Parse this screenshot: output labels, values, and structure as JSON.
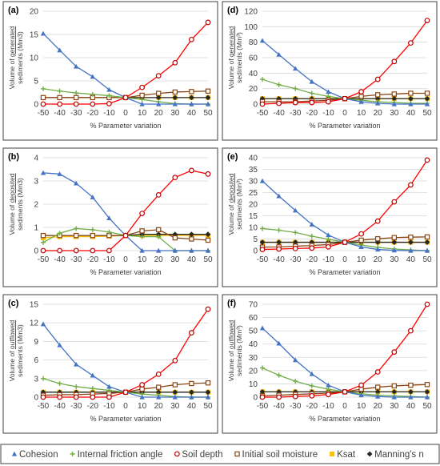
{
  "x_axis_label": "% Parameter variation",
  "colors": {
    "cohesion": "#4472C4",
    "friction": "#70AD47",
    "soil_depth": "#C00000",
    "initial_moisture": "#8B4513",
    "ksat": "#FFC000",
    "mannings": "#262626",
    "red_line": "#FF0000",
    "grid": "#D9D9D9",
    "frame": "#404040"
  },
  "legend": {
    "items": [
      {
        "key": "cohesion",
        "label": "Cohesion",
        "marker": "triangle"
      },
      {
        "key": "friction",
        "label": "Internal friction angle",
        "marker": "plus"
      },
      {
        "key": "soil_depth",
        "label": "Soil depth",
        "marker": "circle"
      },
      {
        "key": "initial_moisture",
        "label": "Initial soil moisture",
        "marker": "square-open"
      },
      {
        "key": "ksat",
        "label": "Ksat",
        "marker": "square"
      },
      {
        "key": "mannings",
        "label": "Manning's n",
        "marker": "diamond"
      }
    ]
  },
  "chart_data": [
    {
      "panel_label": "(a)",
      "type": "line",
      "ylabel_line1_prefix": "Volume of ",
      "ylabel_line1_word": "generated",
      "ylabel_line2": "sediments (Mm3)",
      "x": [
        -50,
        -40,
        -30,
        -20,
        -10,
        0,
        10,
        20,
        30,
        40,
        50
      ],
      "xlim": [
        -50,
        50
      ],
      "ylim": [
        0,
        20
      ],
      "yticks": [
        0,
        5,
        10,
        15,
        20
      ],
      "series": [
        {
          "name": "Cohesion",
          "key": "cohesion",
          "values": [
            15.2,
            11.6,
            8.1,
            5.9,
            3.1,
            1.4,
            0.0,
            0.0,
            0.0,
            0.0,
            0.0
          ]
        },
        {
          "name": "Internal friction angle",
          "key": "friction",
          "values": [
            3.3,
            2.8,
            2.4,
            2.1,
            1.8,
            1.4,
            1.0,
            0.5,
            0.1,
            0.0,
            0.0
          ]
        },
        {
          "name": "Soil depth",
          "key": "soil_depth",
          "values": [
            0.0,
            0.0,
            0.0,
            0.0,
            0.1,
            1.4,
            3.6,
            6.1,
            8.9,
            13.9,
            17.6
          ]
        },
        {
          "name": "Initial soil moisture",
          "key": "initial_moisture",
          "values": [
            1.4,
            1.4,
            1.4,
            1.4,
            1.4,
            1.4,
            1.9,
            2.3,
            2.6,
            2.7,
            2.8
          ]
        },
        {
          "name": "Ksat",
          "key": "ksat",
          "values": [
            1.4,
            1.4,
            1.4,
            1.4,
            1.4,
            1.4,
            1.4,
            1.4,
            1.4,
            1.4,
            1.4
          ]
        },
        {
          "name": "Manning's n",
          "key": "mannings",
          "values": [
            1.4,
            1.4,
            1.4,
            1.4,
            1.4,
            1.4,
            1.4,
            1.4,
            1.4,
            1.4,
            1.4
          ]
        }
      ]
    },
    {
      "panel_label": "(d)",
      "type": "line",
      "ylabel_line1_prefix": "Volume of ",
      "ylabel_line1_word": "generated",
      "ylabel_line2": "sediments (Mm³)",
      "x": [
        -50,
        -40,
        -30,
        -20,
        -10,
        0,
        10,
        20,
        30,
        40,
        50
      ],
      "xlim": [
        -50,
        50
      ],
      "ylim": [
        0,
        120
      ],
      "yticks": [
        0,
        20,
        40,
        60,
        80,
        100,
        120
      ],
      "series": [
        {
          "name": "Cohesion",
          "key": "cohesion",
          "values": [
            82,
            64,
            46,
            29,
            16,
            7,
            3,
            1,
            0,
            0,
            0
          ]
        },
        {
          "name": "Internal friction angle",
          "key": "friction",
          "values": [
            32,
            25,
            20,
            14,
            10,
            7,
            5,
            3,
            2,
            1,
            1
          ]
        },
        {
          "name": "Soil depth",
          "key": "soil_depth",
          "values": [
            0,
            1,
            2,
            2,
            3,
            7,
            16,
            32,
            55,
            79,
            108
          ]
        },
        {
          "name": "Initial soil moisture",
          "key": "initial_moisture",
          "values": [
            3,
            3,
            3,
            4,
            5,
            7,
            10,
            12,
            13,
            14,
            14
          ]
        },
        {
          "name": "Ksat",
          "key": "ksat",
          "values": [
            7,
            7,
            7,
            7,
            7,
            7,
            7,
            7,
            7,
            7,
            7
          ]
        },
        {
          "name": "Manning's n",
          "key": "mannings",
          "values": [
            7,
            7,
            7,
            7,
            7,
            7,
            7,
            7,
            7,
            7,
            7
          ]
        }
      ]
    },
    {
      "panel_label": "(b)",
      "type": "line",
      "ylabel_line1_prefix": "Volume of ",
      "ylabel_line1_word": "deposited",
      "ylabel_line2": "sediments (Mm3)",
      "x": [
        -50,
        -40,
        -30,
        -20,
        -10,
        0,
        10,
        20,
        30,
        40,
        50
      ],
      "xlim": [
        -50,
        50
      ],
      "ylim": [
        0,
        4
      ],
      "yticks": [
        0,
        1,
        2,
        3,
        4
      ],
      "series": [
        {
          "name": "Cohesion",
          "key": "cohesion",
          "values": [
            3.35,
            3.3,
            2.9,
            2.3,
            1.4,
            0.65,
            0.0,
            0.0,
            0.0,
            0.0,
            0.0
          ]
        },
        {
          "name": "Internal friction angle",
          "key": "friction",
          "values": [
            0.35,
            0.75,
            0.95,
            0.9,
            0.8,
            0.65,
            0.6,
            0.6,
            0.0,
            0.0,
            0.0
          ]
        },
        {
          "name": "Soil depth",
          "key": "soil_depth",
          "values": [
            0.0,
            0.0,
            0.0,
            0.0,
            0.0,
            0.65,
            1.6,
            2.4,
            3.15,
            3.45,
            3.3
          ]
        },
        {
          "name": "Initial soil moisture",
          "key": "initial_moisture",
          "values": [
            0.65,
            0.65,
            0.65,
            0.65,
            0.65,
            0.65,
            0.85,
            0.9,
            0.55,
            0.5,
            0.45
          ]
        },
        {
          "name": "Ksat",
          "key": "ksat",
          "values": [
            0.55,
            0.6,
            0.6,
            0.6,
            0.62,
            0.65,
            0.65,
            0.65,
            0.65,
            0.65,
            0.65
          ]
        },
        {
          "name": "Manning's n",
          "key": "mannings",
          "values": [
            0.65,
            0.65,
            0.65,
            0.65,
            0.65,
            0.65,
            0.7,
            0.7,
            0.7,
            0.7,
            0.7
          ]
        }
      ]
    },
    {
      "panel_label": "(e)",
      "type": "line",
      "ylabel_line1_prefix": "Volume of ",
      "ylabel_line1_word": "deposited",
      "ylabel_line2": "sediments (Mm³)",
      "x": [
        -50,
        -40,
        -30,
        -20,
        -10,
        0,
        10,
        20,
        30,
        40,
        50
      ],
      "xlim": [
        -50,
        50
      ],
      "ylim": [
        0,
        40
      ],
      "yticks": [
        0,
        5,
        10,
        15,
        20,
        25,
        30,
        35,
        40
      ],
      "series": [
        {
          "name": "Cohesion",
          "key": "cohesion",
          "values": [
            30,
            23.5,
            17.3,
            11.3,
            6.7,
            3.6,
            1.6,
            0.5,
            0.1,
            0.0,
            0.0
          ]
        },
        {
          "name": "Internal friction angle",
          "key": "friction",
          "values": [
            9.5,
            8.8,
            7.8,
            6.2,
            4.9,
            3.6,
            2.4,
            1.4,
            0.7,
            0.3,
            0.0
          ]
        },
        {
          "name": "Soil depth",
          "key": "soil_depth",
          "values": [
            0.5,
            0.7,
            0.9,
            1.1,
            1.6,
            3.6,
            7.2,
            12.7,
            21.0,
            28.3,
            39.0
          ]
        },
        {
          "name": "Initial soil moisture",
          "key": "initial_moisture",
          "values": [
            1.5,
            1.6,
            1.9,
            2.2,
            2.6,
            3.6,
            4.5,
            5.1,
            5.6,
            5.8,
            5.9
          ]
        },
        {
          "name": "Ksat",
          "key": "ksat",
          "values": [
            3.6,
            3.6,
            3.6,
            3.6,
            3.6,
            3.6,
            3.6,
            3.6,
            3.6,
            3.6,
            3.6
          ]
        },
        {
          "name": "Manning's n",
          "key": "mannings",
          "values": [
            3.6,
            3.6,
            3.6,
            3.6,
            3.6,
            3.6,
            3.6,
            3.6,
            3.6,
            3.6,
            3.6
          ]
        }
      ]
    },
    {
      "panel_label": "(c)",
      "type": "line",
      "ylabel_line1_prefix": "Volume of ",
      "ylabel_line1_word": "outflowed",
      "ylabel_line2": "sediments (Mm3)",
      "x": [
        -50,
        -40,
        -30,
        -20,
        -10,
        0,
        10,
        20,
        30,
        40,
        50
      ],
      "xlim": [
        -50,
        50
      ],
      "ylim": [
        0,
        15
      ],
      "yticks": [
        0,
        3,
        6,
        9,
        12,
        15
      ],
      "series": [
        {
          "name": "Cohesion",
          "key": "cohesion",
          "values": [
            11.8,
            8.4,
            5.3,
            3.5,
            1.7,
            0.8,
            0.0,
            0.0,
            0.0,
            0.0,
            0.0
          ]
        },
        {
          "name": "Internal friction angle",
          "key": "friction",
          "values": [
            3.0,
            2.2,
            1.7,
            1.4,
            1.1,
            0.8,
            0.5,
            0.3,
            0.1,
            0.0,
            0.0
          ]
        },
        {
          "name": "Soil depth",
          "key": "soil_depth",
          "values": [
            0.0,
            0.0,
            0.0,
            0.0,
            0.0,
            0.8,
            2.0,
            3.7,
            5.9,
            10.4,
            14.2
          ]
        },
        {
          "name": "Initial soil moisture",
          "key": "initial_moisture",
          "values": [
            0.3,
            0.4,
            0.4,
            0.5,
            0.6,
            0.8,
            1.3,
            1.6,
            2.0,
            2.2,
            2.3
          ]
        },
        {
          "name": "Ksat",
          "key": "ksat",
          "values": [
            0.8,
            0.8,
            0.8,
            0.8,
            0.8,
            0.8,
            0.8,
            0.8,
            0.8,
            0.8,
            0.8
          ]
        },
        {
          "name": "Manning's n",
          "key": "mannings",
          "values": [
            0.8,
            0.8,
            0.8,
            0.8,
            0.8,
            0.8,
            0.8,
            0.8,
            0.8,
            0.8,
            0.8
          ]
        }
      ]
    },
    {
      "panel_label": "(f)",
      "type": "line",
      "ylabel_line1_prefix": "Volume of ",
      "ylabel_line1_word": "outflowed",
      "ylabel_line2": "sediments (Mm³)",
      "x": [
        -50,
        -40,
        -30,
        -20,
        -10,
        0,
        10,
        20,
        30,
        40,
        50
      ],
      "xlim": [
        -50,
        50
      ],
      "ylim": [
        0,
        70
      ],
      "yticks": [
        0,
        10,
        20,
        30,
        40,
        50,
        60,
        70
      ],
      "series": [
        {
          "name": "Cohesion",
          "key": "cohesion",
          "values": [
            52,
            40.5,
            28,
            17.5,
            9,
            4,
            1.5,
            0.5,
            0,
            0,
            0
          ]
        },
        {
          "name": "Internal friction angle",
          "key": "friction",
          "values": [
            22,
            16.5,
            12,
            8.5,
            6,
            4,
            2.5,
            1.5,
            1,
            0.5,
            0
          ]
        },
        {
          "name": "Soil depth",
          "key": "soil_depth",
          "values": [
            0,
            0,
            0.5,
            1,
            2,
            4,
            9,
            19,
            34,
            50,
            70
          ]
        },
        {
          "name": "Initial soil moisture",
          "key": "initial_moisture",
          "values": [
            1,
            1.5,
            2,
            2.5,
            3,
            4,
            6,
            7.5,
            8.5,
            9,
            9.5
          ]
        },
        {
          "name": "Ksat",
          "key": "ksat",
          "values": [
            4,
            4,
            4,
            4,
            4,
            4,
            4,
            4,
            4,
            4,
            4
          ]
        },
        {
          "name": "Manning's n",
          "key": "mannings",
          "values": [
            4,
            4,
            4,
            4,
            4,
            4,
            4,
            4,
            4,
            4,
            4
          ]
        }
      ]
    }
  ]
}
